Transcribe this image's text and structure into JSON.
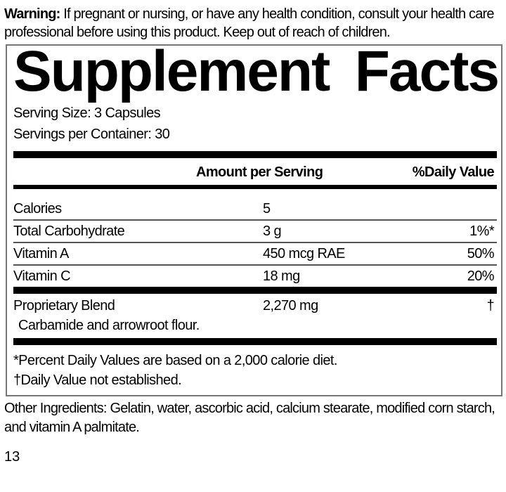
{
  "warning": {
    "label": "Warning:",
    "text": " If pregnant or nursing, or have any health condition, consult your health care professional before using this product. Keep out of reach of children."
  },
  "panel": {
    "title_word1": "Supplement",
    "title_word2": "Facts",
    "serving_size": "Serving Size: 3 Capsules",
    "servings_per_container": "Servings per Container: 30",
    "header_amount": "Amount per Serving",
    "header_dv": "%Daily Value",
    "rows": [
      {
        "name": "Calories",
        "amount": "5",
        "dv": ""
      },
      {
        "name": "Total Carbohydrate",
        "amount": "3 g",
        "dv": "1%*"
      },
      {
        "name": "Vitamin A",
        "amount": "450 mcg RAE",
        "dv": "50%"
      },
      {
        "name": "Vitamin C",
        "amount": "18 mg",
        "dv": "20%"
      }
    ],
    "blend": {
      "name": "Proprietary Blend",
      "amount": "2,270 mg",
      "dv": "†",
      "ingredients": "Carbamide and arrowroot flour."
    },
    "footnote1": "*Percent Daily Values are based on a 2,000 calorie diet.",
    "footnote2": "†Daily Value not established."
  },
  "other_ingredients": "Other Ingredients: Gelatin, water, ascorbic acid, calcium stearate, modified corn starch, and vitamin A palmitate.",
  "page_number": "13"
}
